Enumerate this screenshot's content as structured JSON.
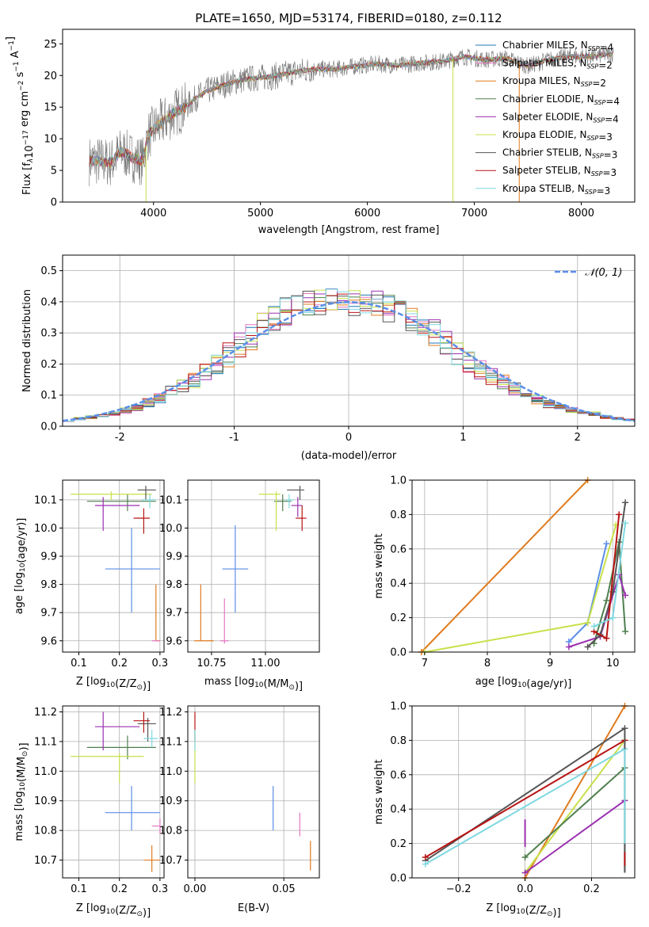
{
  "colors": {
    "chabrier_miles": "#1f77b4",
    "salpeter_miles": "#e377c2",
    "kroupa_miles": "#e07b1f",
    "chabrier_elodie": "#4f7f4f",
    "salpeter_elodie": "#9b30b0",
    "kroupa_elodie": "#c8e04a",
    "chabrier_stelib": "#555555",
    "salpeter_stelib": "#b81414",
    "kroupa_stelib": "#7fd8e0",
    "blue_gauss": "#5b8ee8"
  },
  "chart_data": [
    {
      "type": "line",
      "title": "PLATE=1650, MJD=53174, FIBERID=0180, z=0.112",
      "xlabel": "wavelength [Angstrom, rest frame]",
      "ylabel": "Flux [f_λ10^-17 erg cm^-2 s^-1 A^-1]",
      "xlim": [
        3150,
        8500
      ],
      "ylim": [
        0,
        27.3
      ],
      "xticks": [
        4000,
        5000,
        6000,
        7000,
        8000
      ],
      "yticks": [
        0,
        5,
        10,
        15,
        20,
        25
      ],
      "legend": "upper-right",
      "grid": false,
      "series": [
        {
          "name": "Chabrier MILES, N_SSP=4",
          "color": "#1f77b4"
        },
        {
          "name": "Salpeter MILES, N_SSP=2",
          "color": "#e377c2"
        },
        {
          "name": "Kroupa MILES, N_SSP=2",
          "color": "#e07b1f"
        },
        {
          "name": "Chabrier ELODIE, N_SSP=4",
          "color": "#4f7f4f"
        },
        {
          "name": "Salpeter ELODIE, N_SSP=4",
          "color": "#9b30b0"
        },
        {
          "name": "Kroupa ELODIE, N_SSP=3",
          "color": "#c8e04a"
        },
        {
          "name": "Chabrier STELIB, N_SSP=3",
          "color": "#555555"
        },
        {
          "name": "Salpeter STELIB, N_SSP=3",
          "color": "#b81414"
        },
        {
          "name": "Kroupa STELIB, N_SSP=3",
          "color": "#7fd8e0"
        }
      ],
      "continuum": {
        "x": [
          3400,
          3500,
          3600,
          3700,
          3800,
          3900,
          3950,
          4000,
          4100,
          4200,
          4300,
          4400,
          4500,
          4700,
          4900,
          5100,
          5300,
          5500,
          5700,
          5900,
          6100,
          6300,
          6500,
          6700,
          6900,
          7100,
          7300,
          7500,
          7700,
          7900,
          8100,
          8300
        ],
        "y": [
          6.5,
          6.5,
          6.2,
          8.0,
          7.0,
          6.5,
          10.5,
          11.5,
          12.8,
          14.2,
          15.0,
          16.5,
          17.5,
          18.8,
          19.5,
          19.8,
          20.5,
          21.0,
          21.0,
          21.5,
          21.8,
          21.6,
          22.0,
          22.2,
          23.0,
          22.5,
          22.7,
          21.5,
          22.5,
          23.0,
          23.0,
          23.5
        ]
      },
      "dips": [
        {
          "x": 3930,
          "y": 0
        },
        {
          "x": 6800,
          "y": 0
        },
        {
          "x": 7420,
          "y": 0
        }
      ]
    },
    {
      "type": "step",
      "xlabel": "(data-model)/error",
      "ylabel": "Normed distribution",
      "xlim": [
        -2.5,
        2.5
      ],
      "ylim": [
        0,
        0.55
      ],
      "xticks": [
        -2,
        -1,
        0,
        1,
        2
      ],
      "yticks": [
        0,
        0.1,
        0.2,
        0.3,
        0.4,
        0.5
      ],
      "legend": "upper-right",
      "legend_entry": "𝒩(0, 1)",
      "grid": true,
      "bin_edges": [
        -2.5,
        -2.4,
        -2.3,
        -2.2,
        -2.1,
        -2.0,
        -1.9,
        -1.8,
        -1.7,
        -1.6,
        -1.5,
        -1.4,
        -1.3,
        -1.2,
        -1.1,
        -1.0,
        -0.9,
        -0.8,
        -0.7,
        -0.6,
        -0.5,
        -0.4,
        -0.3,
        -0.2,
        -0.1,
        0.0,
        0.1,
        0.2,
        0.3,
        0.4,
        0.5,
        0.6,
        0.7,
        0.8,
        0.9,
        1.0,
        1.1,
        1.2,
        1.3,
        1.4,
        1.5,
        1.6,
        1.7,
        1.8,
        1.9,
        2.0,
        2.1,
        2.2,
        2.3,
        2.4,
        2.5
      ],
      "base_hist": [
        0.02,
        0.025,
        0.03,
        0.035,
        0.04,
        0.05,
        0.06,
        0.075,
        0.09,
        0.11,
        0.13,
        0.15,
        0.17,
        0.2,
        0.23,
        0.26,
        0.29,
        0.32,
        0.35,
        0.37,
        0.38,
        0.39,
        0.4,
        0.41,
        0.4,
        0.4,
        0.39,
        0.39,
        0.38,
        0.37,
        0.35,
        0.33,
        0.3,
        0.27,
        0.24,
        0.21,
        0.18,
        0.16,
        0.14,
        0.12,
        0.1,
        0.085,
        0.07,
        0.06,
        0.05,
        0.045,
        0.04,
        0.03,
        0.025,
        0.02
      ],
      "gauss_color": "#5b8ee8"
    },
    {
      "type": "scatter",
      "xlabel": "Z [log10(Z/Z☉)]",
      "ylabel": "age  [log10(age/yr)]",
      "xlim": [
        0.06,
        0.31
      ],
      "ylim": [
        9.56,
        10.17
      ],
      "xticks": [
        0.1,
        0.2,
        0.3
      ],
      "yticks": [
        9.6,
        9.7,
        9.8,
        9.9,
        10.0,
        10.1
      ],
      "grid": true,
      "points": [
        {
          "x": 0.23,
          "xerr": [
            0.165,
            0.3
          ],
          "y": 9.855,
          "yerr": [
            9.7,
            10.0
          ],
          "color": "#5b8ee8"
        },
        {
          "x": 0.29,
          "xerr": [
            0.29,
            0.3
          ],
          "y": 9.6,
          "yerr": [
            9.6,
            9.8
          ],
          "color": "#e07b1f"
        },
        {
          "x": 0.3,
          "xerr": [
            0.28,
            0.3
          ],
          "y": 9.6,
          "yerr": [
            9.6,
            9.6
          ],
          "color": "#e377c2"
        },
        {
          "x": 0.22,
          "xerr": [
            0.12,
            0.29
          ],
          "y": 10.095,
          "yerr": [
            10.06,
            10.12
          ],
          "color": "#4f7f4f"
        },
        {
          "x": 0.16,
          "xerr": [
            0.14,
            0.25
          ],
          "y": 10.08,
          "yerr": [
            9.99,
            10.11
          ],
          "color": "#9b30b0"
        },
        {
          "x": 0.18,
          "xerr": [
            0.08,
            0.28
          ],
          "y": 10.12,
          "yerr": [
            10.1,
            10.13
          ],
          "color": "#c8e04a"
        },
        {
          "x": 0.265,
          "xerr": [
            0.245,
            0.29
          ],
          "y": 10.135,
          "yerr": [
            10.1,
            10.15
          ],
          "color": "#555555"
        },
        {
          "x": 0.26,
          "xerr": [
            0.235,
            0.275
          ],
          "y": 10.035,
          "yerr": [
            9.98,
            10.07
          ],
          "color": "#b81414"
        },
        {
          "x": 0.275,
          "xerr": [
            0.255,
            0.29
          ],
          "y": 10.1,
          "yerr": [
            10.07,
            10.12
          ],
          "color": "#7fd8e0"
        }
      ]
    },
    {
      "type": "scatter",
      "xlabel": "mass [log10(M/M☉)]",
      "ylabel": "",
      "xlim": [
        10.64,
        11.25
      ],
      "ylim": [
        9.56,
        10.17
      ],
      "xticks": [
        10.75,
        11.0
      ],
      "xticklabels": [
        "10.75",
        "11.00"
      ],
      "yticks": [
        9.6,
        9.7,
        9.8,
        9.9,
        10.0,
        10.1
      ],
      "grid": true,
      "points": [
        {
          "x": 10.86,
          "xerr": [
            10.8,
            10.92
          ],
          "y": 9.855,
          "yerr": [
            9.7,
            10.01
          ],
          "color": "#5b8ee8"
        },
        {
          "x": 10.7,
          "xerr": [
            10.67,
            10.76
          ],
          "y": 9.6,
          "yerr": [
            9.6,
            9.8
          ],
          "color": "#e07b1f"
        },
        {
          "x": 10.81,
          "xerr": [
            10.79,
            10.83
          ],
          "y": 9.6,
          "yerr": [
            9.59,
            9.75
          ],
          "color": "#e377c2"
        },
        {
          "x": 11.08,
          "xerr": [
            11.04,
            11.12
          ],
          "y": 10.095,
          "yerr": [
            10.06,
            10.12
          ],
          "color": "#4f7f4f"
        },
        {
          "x": 11.15,
          "xerr": [
            11.12,
            11.17
          ],
          "y": 10.08,
          "yerr": [
            10.04,
            10.11
          ],
          "color": "#9b30b0"
        },
        {
          "x": 11.05,
          "xerr": [
            10.97,
            11.07
          ],
          "y": 10.12,
          "yerr": [
            9.99,
            10.13
          ],
          "color": "#c8e04a"
        },
        {
          "x": 11.16,
          "xerr": [
            11.1,
            11.18
          ],
          "y": 10.135,
          "yerr": [
            10.1,
            10.15
          ],
          "color": "#555555"
        },
        {
          "x": 11.17,
          "xerr": [
            11.14,
            11.19
          ],
          "y": 10.035,
          "yerr": [
            9.99,
            10.08
          ],
          "color": "#b81414"
        },
        {
          "x": 11.11,
          "xerr": [
            11.09,
            11.13
          ],
          "y": 10.1,
          "yerr": [
            10.07,
            10.12
          ],
          "color": "#7fd8e0"
        }
      ]
    },
    {
      "type": "line",
      "xlabel": "age  [log10(age/yr)]",
      "ylabel": "mass weight",
      "xlim": [
        6.8,
        10.35
      ],
      "ylim": [
        0,
        1.0
      ],
      "xticks": [
        7,
        8,
        9,
        10
      ],
      "yticks": [
        0,
        0.2,
        0.4,
        0.6,
        0.8,
        1.0
      ],
      "yticklabels": [
        "0.0",
        "0.2",
        "0.4",
        "0.6",
        "0.8",
        "1.0"
      ],
      "grid": true,
      "series": [
        {
          "color": "#5b8ee8",
          "x": [
            9.3,
            9.6,
            9.9
          ],
          "y": [
            0.06,
            0.17,
            0.63
          ]
        },
        {
          "color": "#e07b1f",
          "x": [
            6.95,
            9.6
          ],
          "y": [
            0.0,
            1.0
          ]
        },
        {
          "color": "#c8e04a",
          "x": [
            7.0,
            9.6,
            10.05
          ],
          "y": [
            0.0,
            0.17,
            0.74
          ]
        },
        {
          "color": "#4f7f4f",
          "x": [
            9.7,
            9.9,
            10.1,
            10.2
          ],
          "y": [
            0.05,
            0.3,
            0.64,
            0.12
          ]
        },
        {
          "color": "#9b30b0",
          "x": [
            9.3,
            9.8,
            10.1,
            10.2
          ],
          "y": [
            0.03,
            0.09,
            0.45,
            0.33
          ]
        },
        {
          "color": "#555555",
          "x": [
            9.6,
            9.8,
            10.0,
            10.2
          ],
          "y": [
            0.03,
            0.1,
            0.35,
            0.87
          ]
        },
        {
          "color": "#b81414",
          "x": [
            9.7,
            9.9,
            10.1
          ],
          "y": [
            0.12,
            0.08,
            0.8
          ]
        },
        {
          "color": "#7fd8e0",
          "x": [
            9.7,
            10.0,
            10.2
          ],
          "y": [
            0.15,
            0.2,
            0.75
          ]
        }
      ]
    },
    {
      "type": "scatter",
      "xlabel": "Z [log10(Z/Z☉)]",
      "ylabel": "mass [log10(M/M☉)]",
      "xlim": [
        0.06,
        0.31
      ],
      "ylim": [
        10.64,
        11.22
      ],
      "xticks": [
        0.1,
        0.2,
        0.3
      ],
      "yticks": [
        10.7,
        10.8,
        10.9,
        11.0,
        11.1,
        11.2
      ],
      "grid": true,
      "points": [
        {
          "x": 0.23,
          "xerr": [
            0.165,
            0.3
          ],
          "y": 10.86,
          "yerr": [
            10.8,
            10.95
          ],
          "color": "#5b8ee8"
        },
        {
          "x": 0.28,
          "xerr": [
            0.26,
            0.3
          ],
          "y": 10.7,
          "yerr": [
            10.66,
            10.75
          ],
          "color": "#e07b1f"
        },
        {
          "x": 0.3,
          "xerr": [
            0.28,
            0.3
          ],
          "y": 10.815,
          "yerr": [
            10.79,
            10.84
          ],
          "color": "#e377c2"
        },
        {
          "x": 0.22,
          "xerr": [
            0.12,
            0.29
          ],
          "y": 11.08,
          "yerr": [
            11.04,
            11.12
          ],
          "color": "#4f7f4f"
        },
        {
          "x": 0.16,
          "xerr": [
            0.14,
            0.25
          ],
          "y": 11.15,
          "yerr": [
            11.07,
            11.2
          ],
          "color": "#9b30b0"
        },
        {
          "x": 0.2,
          "xerr": [
            0.08,
            0.26
          ],
          "y": 11.05,
          "yerr": [
            10.96,
            11.06
          ],
          "color": "#c8e04a"
        },
        {
          "x": 0.27,
          "xerr": [
            0.245,
            0.29
          ],
          "y": 11.16,
          "yerr": [
            11.1,
            11.18
          ],
          "color": "#555555"
        },
        {
          "x": 0.26,
          "xerr": [
            0.235,
            0.275
          ],
          "y": 11.17,
          "yerr": [
            11.13,
            11.2
          ],
          "color": "#b81414"
        },
        {
          "x": 0.28,
          "xerr": [
            0.26,
            0.295
          ],
          "y": 11.11,
          "yerr": [
            11.08,
            11.14
          ],
          "color": "#7fd8e0"
        }
      ]
    },
    {
      "type": "scatter",
      "xlabel": "E(B-V)",
      "ylabel": "",
      "xlim": [
        -0.004,
        0.07
      ],
      "ylim": [
        10.64,
        11.22
      ],
      "xticks": [
        0.0,
        0.05
      ],
      "xticklabels": [
        "0.00",
        "0.05"
      ],
      "yticks": [
        10.7,
        10.8,
        10.9,
        11.0,
        11.1,
        11.2
      ],
      "grid": true,
      "points": [
        {
          "x": 0.044,
          "y": 10.875,
          "yerr": [
            10.8,
            10.95
          ],
          "color": "#5b8ee8"
        },
        {
          "x": 0.065,
          "y": 10.715,
          "yerr": [
            10.665,
            10.765
          ],
          "color": "#e07b1f"
        },
        {
          "x": 0.059,
          "y": 10.82,
          "yerr": [
            10.78,
            10.86
          ],
          "color": "#e377c2"
        },
        {
          "x": 0.0,
          "y": 11.05,
          "yerr": [
            10.96,
            11.13
          ],
          "color": "#c8e04a"
        },
        {
          "x": 0.0,
          "y": 11.16,
          "yerr": [
            11.1,
            11.2
          ],
          "color": "#b81414"
        },
        {
          "x": 0.0,
          "y": 11.1,
          "yerr": [
            11.07,
            11.14
          ],
          "color": "#7fd8e0"
        }
      ]
    },
    {
      "type": "line",
      "xlabel": "Z [log10(Z/Z☉)]",
      "ylabel": "mass weight",
      "xlim": [
        -0.34,
        0.33
      ],
      "ylim": [
        0,
        1.0
      ],
      "xticks": [
        -0.2,
        0.0,
        0.2
      ],
      "xticklabels": [
        "−0.2",
        "0.0",
        "0.2"
      ],
      "yticks": [
        0,
        0.2,
        0.4,
        0.6,
        0.8,
        1.0
      ],
      "yticklabels": [
        "0.0",
        "0.2",
        "0.4",
        "0.6",
        "0.8",
        "1.0"
      ],
      "grid": true,
      "series": [
        {
          "color": "#e07b1f",
          "x": [
            0.0,
            0.3
          ],
          "y": [
            0.0,
            1.0
          ]
        },
        {
          "color": "#c8e04a",
          "x": [
            0.0,
            0.3
          ],
          "y": [
            0.03,
            0.8
          ]
        },
        {
          "color": "#4f7f4f",
          "x": [
            0.0,
            0.3
          ],
          "y": [
            0.12,
            0.64
          ]
        },
        {
          "color": "#9b30b0",
          "x": [
            0.0,
            0.3
          ],
          "y": [
            0.03,
            0.45
          ]
        },
        {
          "color": "#555555",
          "x": [
            -0.3,
            0.3
          ],
          "y": [
            0.1,
            0.87
          ]
        },
        {
          "color": "#b81414",
          "x": [
            -0.3,
            0.3
          ],
          "y": [
            0.12,
            0.8
          ]
        },
        {
          "color": "#7fd8e0",
          "x": [
            -0.3,
            0.3
          ],
          "y": [
            0.08,
            0.75
          ]
        }
      ],
      "vertical_marks": [
        {
          "color": "#9b30b0",
          "x": 0.0,
          "y": [
            0.18,
            0.34
          ]
        },
        {
          "color": "#4f7f4f",
          "x": 0.3,
          "y": [
            0.04,
            0.64
          ]
        },
        {
          "color": "#555555",
          "x": 0.3,
          "y": [
            0.03,
            0.87
          ]
        },
        {
          "color": "#b81414",
          "x": 0.3,
          "y": [
            0.07,
            0.15
          ]
        },
        {
          "color": "#7fd8e0",
          "x": 0.3,
          "y": [
            0.2,
            0.75
          ]
        }
      ]
    }
  ]
}
